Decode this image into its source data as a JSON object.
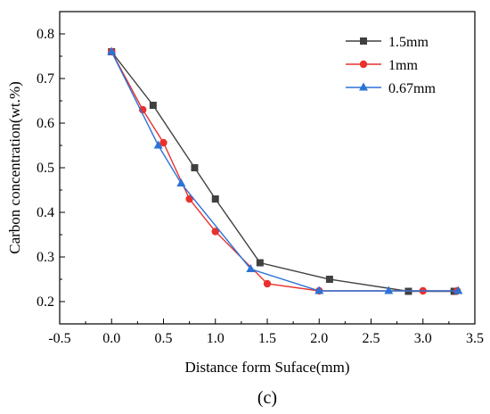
{
  "chart_data": {
    "type": "line",
    "title": "",
    "xlabel": "Distance form Suface(mm)",
    "ylabel": "Carbon concentration(wt.%)",
    "xlim": [
      -0.5,
      3.5
    ],
    "ylim": [
      0.15,
      0.85
    ],
    "x_ticks": [
      "-0.5",
      "0.0",
      "0.5",
      "1.0",
      "1.5",
      "2.0",
      "2.5",
      "3.0",
      "3.5"
    ],
    "y_ticks": [
      "0.2",
      "0.3",
      "0.4",
      "0.5",
      "0.6",
      "0.7",
      "0.8"
    ],
    "grid": false,
    "legend_position": "top-right",
    "panel_label": "(c)",
    "series": [
      {
        "name": "1.5mm",
        "color": "#404040",
        "marker": "square",
        "x": [
          0.0,
          0.4,
          0.8,
          1.0,
          1.43,
          2.1,
          2.86,
          3.3
        ],
        "y": [
          0.76,
          0.64,
          0.5,
          0.43,
          0.287,
          0.25,
          0.223,
          0.223
        ]
      },
      {
        "name": "1mm",
        "color": "#e8312f",
        "marker": "circle",
        "x": [
          0.0,
          0.3,
          0.5,
          0.75,
          1.0,
          1.5,
          2.0,
          3.0,
          3.33
        ],
        "y": [
          0.76,
          0.63,
          0.556,
          0.43,
          0.357,
          0.24,
          0.224,
          0.224,
          0.224
        ]
      },
      {
        "name": "0.67mm",
        "color": "#2b73d6",
        "marker": "triangle",
        "x": [
          0.0,
          0.45,
          0.67,
          1.34,
          2.0,
          2.67,
          3.34
        ],
        "y": [
          0.76,
          0.55,
          0.465,
          0.273,
          0.224,
          0.224,
          0.224
        ]
      }
    ]
  }
}
